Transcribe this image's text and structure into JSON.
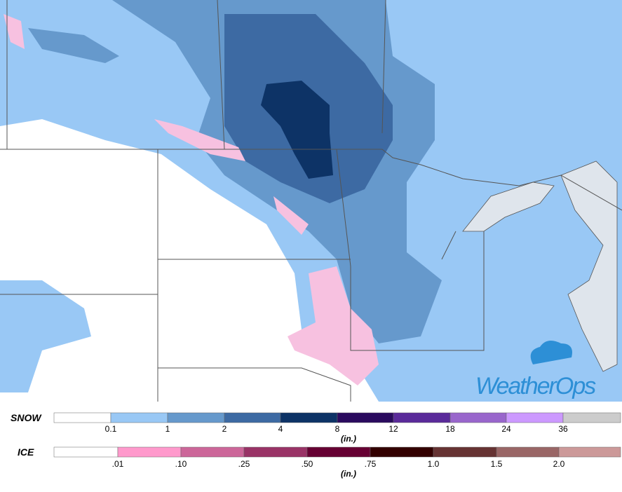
{
  "map": {
    "logo": "WeatherOps"
  },
  "legend": {
    "snow": {
      "label": "SNOW",
      "ticks": [
        "0.1",
        "1",
        "2",
        "4",
        "8",
        "12",
        "18",
        "24",
        "36"
      ],
      "unit": "(in.)"
    },
    "ice": {
      "label": "ICE",
      "ticks": [
        ".01",
        ".10",
        ".25",
        ".50",
        ".75",
        "1.0",
        "1.5",
        "2.0"
      ],
      "unit": "(in.)"
    }
  }
}
